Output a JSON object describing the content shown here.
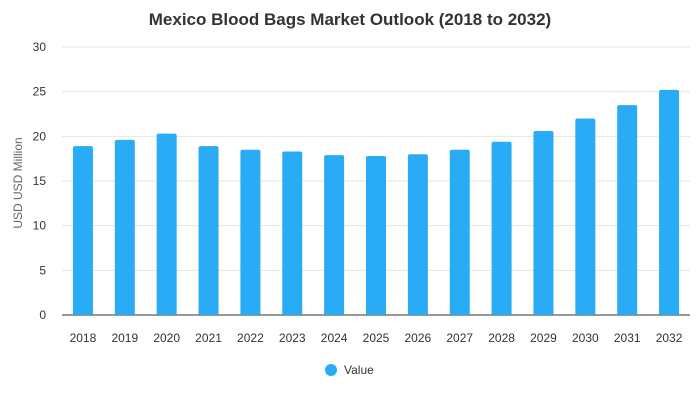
{
  "chart_data": {
    "type": "bar",
    "title": "Mexico Blood Bags Market Outlook (2018 to 2032)",
    "ylabel": "USD USD Million",
    "xlabel": "",
    "categories": [
      "2018",
      "2019",
      "2020",
      "2021",
      "2022",
      "2023",
      "2024",
      "2025",
      "2026",
      "2027",
      "2028",
      "2029",
      "2030",
      "2031",
      "2032"
    ],
    "series": [
      {
        "name": "Value",
        "color": "#29abf5",
        "values": [
          18.9,
          19.6,
          20.3,
          18.9,
          18.5,
          18.3,
          17.9,
          17.8,
          18.0,
          18.5,
          19.4,
          20.6,
          22.0,
          23.5,
          25.2
        ]
      }
    ],
    "ylim": [
      0,
      30
    ],
    "yticks": [
      0,
      5,
      10,
      15,
      20,
      25,
      30
    ],
    "grid": true,
    "legend_position": "bottom"
  }
}
